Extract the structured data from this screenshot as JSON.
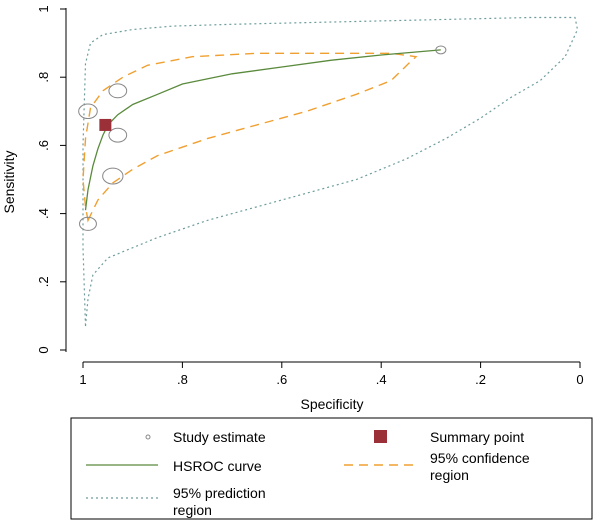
{
  "chart_data": {
    "type": "scatter",
    "title": "",
    "xlabel": "Specificity",
    "ylabel": "Sensitivity",
    "x_reversed": true,
    "xlim": [
      0,
      1
    ],
    "ylim": [
      0,
      1
    ],
    "x_ticks": [
      {
        "value": 1,
        "label": "1"
      },
      {
        "value": 0.8,
        "label": ".8"
      },
      {
        "value": 0.6,
        "label": ".6"
      },
      {
        "value": 0.4,
        "label": ".4"
      },
      {
        "value": 0.2,
        "label": ".2"
      },
      {
        "value": 0,
        "label": "0"
      }
    ],
    "y_ticks": [
      {
        "value": 0,
        "label": "0"
      },
      {
        "value": 0.2,
        "label": ".2"
      },
      {
        "value": 0.4,
        "label": ".4"
      },
      {
        "value": 0.6,
        "label": ".6"
      },
      {
        "value": 0.8,
        "label": ".8"
      },
      {
        "value": 1,
        "label": "1"
      }
    ],
    "grid": false,
    "legend_position": "bottom",
    "study_estimates": [
      {
        "spec": 0.99,
        "sens": 0.37,
        "weight": 0.7
      },
      {
        "spec": 0.99,
        "sens": 0.7,
        "weight": 0.8
      },
      {
        "spec": 0.94,
        "sens": 0.51,
        "weight": 0.9
      },
      {
        "spec": 0.93,
        "sens": 0.63,
        "weight": 0.75
      },
      {
        "spec": 0.93,
        "sens": 0.76,
        "weight": 0.75
      },
      {
        "spec": 0.28,
        "sens": 0.88,
        "weight": 0.3
      }
    ],
    "summary_point": {
      "spec": 0.955,
      "sens": 0.66
    },
    "hsroc_curve": [
      [
        0.995,
        0.41
      ],
      [
        0.99,
        0.47
      ],
      [
        0.98,
        0.54
      ],
      [
        0.97,
        0.59
      ],
      [
        0.96,
        0.63
      ],
      [
        0.95,
        0.66
      ],
      [
        0.93,
        0.69
      ],
      [
        0.9,
        0.72
      ],
      [
        0.85,
        0.75
      ],
      [
        0.8,
        0.78
      ],
      [
        0.7,
        0.81
      ],
      [
        0.6,
        0.83
      ],
      [
        0.5,
        0.85
      ],
      [
        0.4,
        0.865
      ],
      [
        0.28,
        0.88
      ]
    ],
    "confidence_region": [
      [
        0.99,
        0.38
      ],
      [
        0.97,
        0.44
      ],
      [
        0.94,
        0.49
      ],
      [
        0.9,
        0.53
      ],
      [
        0.85,
        0.57
      ],
      [
        0.75,
        0.62
      ],
      [
        0.65,
        0.66
      ],
      [
        0.55,
        0.7
      ],
      [
        0.45,
        0.75
      ],
      [
        0.38,
        0.79
      ],
      [
        0.345,
        0.84
      ],
      [
        0.33,
        0.86
      ],
      [
        0.38,
        0.87
      ],
      [
        0.5,
        0.87
      ],
      [
        0.65,
        0.87
      ],
      [
        0.78,
        0.86
      ],
      [
        0.87,
        0.835
      ],
      [
        0.92,
        0.8
      ],
      [
        0.96,
        0.76
      ],
      [
        0.985,
        0.71
      ],
      [
        0.995,
        0.62
      ],
      [
        1.0,
        0.5
      ],
      [
        0.995,
        0.42
      ],
      [
        0.99,
        0.38
      ]
    ],
    "prediction_region": [
      [
        0.995,
        0.07
      ],
      [
        0.99,
        0.15
      ],
      [
        0.98,
        0.22
      ],
      [
        0.95,
        0.27
      ],
      [
        0.85,
        0.33
      ],
      [
        0.75,
        0.38
      ],
      [
        0.6,
        0.44
      ],
      [
        0.45,
        0.5
      ],
      [
        0.35,
        0.56
      ],
      [
        0.27,
        0.62
      ],
      [
        0.2,
        0.68
      ],
      [
        0.14,
        0.74
      ],
      [
        0.08,
        0.79
      ],
      [
        0.03,
        0.86
      ],
      [
        0.005,
        0.94
      ],
      [
        0.01,
        0.975
      ],
      [
        0.1,
        0.975
      ],
      [
        0.25,
        0.97
      ],
      [
        0.4,
        0.965
      ],
      [
        0.55,
        0.96
      ],
      [
        0.7,
        0.955
      ],
      [
        0.82,
        0.95
      ],
      [
        0.9,
        0.94
      ],
      [
        0.96,
        0.925
      ],
      [
        0.985,
        0.9
      ],
      [
        0.995,
        0.84
      ],
      [
        1.0,
        0.6
      ],
      [
        1.0,
        0.3
      ],
      [
        0.995,
        0.07
      ]
    ],
    "legend": [
      {
        "key": "study",
        "label_lines": [
          "Study estimate"
        ]
      },
      {
        "key": "summary",
        "label_lines": [
          "Summary point"
        ]
      },
      {
        "key": "hsroc",
        "label_lines": [
          "HSROC curve"
        ]
      },
      {
        "key": "confidence",
        "label_lines": [
          "95% confidence",
          "region"
        ]
      },
      {
        "key": "prediction",
        "label_lines": [
          "95% prediction",
          "region"
        ]
      }
    ],
    "colors": {
      "hsroc": "#5a8a3c",
      "confidence": "#f0a030",
      "prediction": "#6e9c9c",
      "summary": "#9c3038",
      "study": "#888888",
      "axis": "#000000"
    }
  }
}
